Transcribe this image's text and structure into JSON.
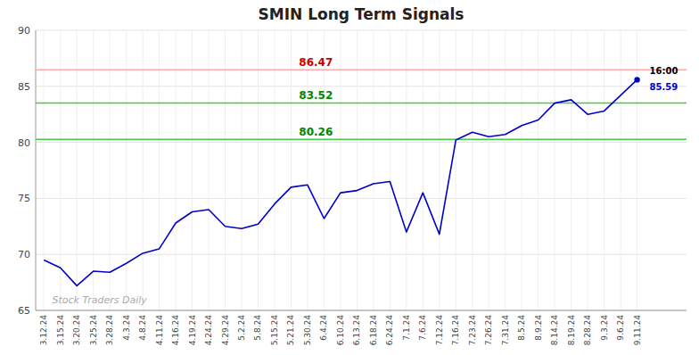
{
  "chart_data": {
    "type": "line",
    "title": "SMIN Long Term Signals",
    "color": "#0000cc",
    "grid": true,
    "ylim": [
      65,
      90
    ],
    "yticks": [
      65,
      70,
      75,
      80,
      85,
      90
    ],
    "categories": [
      "3.12.24",
      "3.15.24",
      "3.20.24",
      "3.25.24",
      "3.28.24",
      "4.3.24",
      "4.8.24",
      "4.11.24",
      "4.16.24",
      "4.19.24",
      "4.24.24",
      "4.29.24",
      "5.2.24",
      "5.8.24",
      "5.15.24",
      "5.21.24",
      "5.30.24",
      "6.4.24",
      "6.10.24",
      "6.13.24",
      "6.18.24",
      "6.24.24",
      "7.1.24",
      "7.6.24",
      "7.12.24",
      "7.16.24",
      "7.23.24",
      "7.26.24",
      "7.31.24",
      "8.5.24",
      "8.9.24",
      "8.14.24",
      "8.19.24",
      "8.28.24",
      "9.3.24",
      "9.6.24",
      "9.11.24"
    ],
    "values": [
      69.5,
      68.8,
      67.2,
      68.5,
      68.4,
      69.2,
      70.1,
      70.5,
      72.8,
      73.8,
      74.0,
      72.5,
      72.3,
      72.7,
      74.5,
      76.0,
      76.2,
      73.2,
      75.5,
      75.7,
      76.3,
      76.5,
      72.0,
      75.5,
      71.8,
      80.2,
      80.9,
      80.5,
      80.7,
      81.5,
      82.0,
      83.5,
      83.8,
      82.5,
      82.8,
      84.2,
      85.59
    ],
    "hlines": [
      {
        "value": 86.47,
        "color": "#ffaaaa",
        "label_color": "#cc0000"
      },
      {
        "value": 83.52,
        "color": "#44cc44",
        "label_color": "#008800"
      },
      {
        "value": 80.26,
        "color": "#44cc44",
        "label_color": "#008800"
      }
    ],
    "annotations": [
      {
        "text": "16:00",
        "color": "#000000"
      },
      {
        "text": "Stock Traders Daily",
        "color": "#aaaaaa"
      }
    ]
  }
}
